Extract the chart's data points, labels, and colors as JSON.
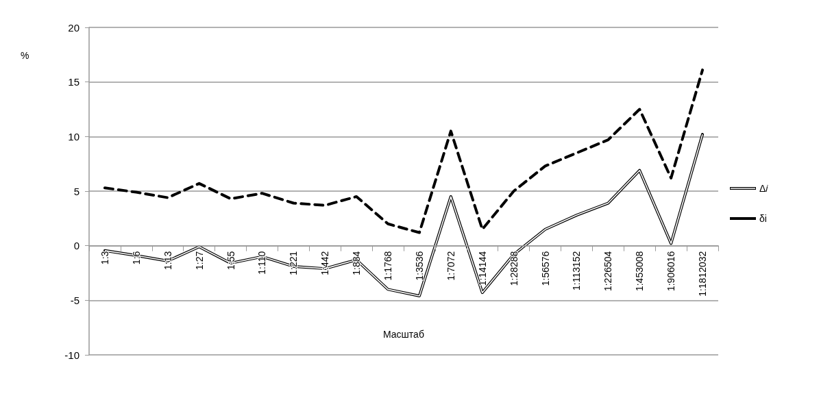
{
  "chart_data": {
    "type": "line",
    "xlabel": "Масштаб",
    "ylabel": "%",
    "categories": [
      "1:3",
      "1:6",
      "1:13",
      "1:27",
      "1:55",
      "1:110",
      "1:221",
      "1:442",
      "1:884",
      "1:1768",
      "1:3536",
      "1:7072",
      "1:14144",
      "1:28288",
      "1:56576",
      "1:113152",
      "1:226504",
      "1:453008",
      "1:906016",
      "1:1812032"
    ],
    "series": [
      {
        "name": "Δ𝑖",
        "color": "#000000",
        "line_style": "solid",
        "values": [
          -0.45,
          -0.9,
          -1.4,
          -0.1,
          -1.6,
          -1.0,
          -1.9,
          -2.1,
          -1.3,
          -4.0,
          -4.6,
          4.5,
          -4.3,
          -0.8,
          1.5,
          2.8,
          3.9,
          6.9,
          0.2,
          10.2
        ]
      },
      {
        "name": "δi",
        "color": "#000000",
        "line_style": "dashed",
        "values": [
          5.3,
          4.9,
          4.4,
          5.7,
          4.3,
          4.8,
          3.9,
          3.7,
          4.5,
          2.0,
          1.2,
          10.5,
          1.5,
          5.0,
          7.3,
          8.5,
          9.7,
          12.5,
          6.2,
          16.1
        ]
      }
    ],
    "ylim": [
      -10,
      20
    ],
    "yticks": [
      -10,
      -5,
      0,
      5,
      10,
      15,
      20
    ],
    "grid": "y",
    "legend": "right",
    "marker": "none"
  }
}
